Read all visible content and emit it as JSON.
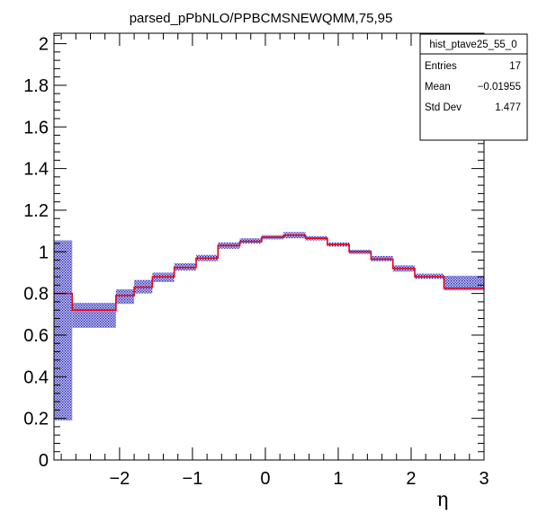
{
  "chart_data": {
    "type": "histogram",
    "title": "parsed_pPbNLO/PPBCMSNEWQMM,75,95",
    "xlabel": "η",
    "ylabel": "",
    "xlim": [
      -2.9,
      3.0
    ],
    "ylim": [
      0,
      2.05
    ],
    "x_ticks": [
      -2,
      -1,
      0,
      1,
      2,
      3
    ],
    "x_tick_labels": [
      "−2",
      "−1",
      "0",
      "1",
      "2",
      "3"
    ],
    "y_ticks": [
      0,
      0.2,
      0.4,
      0.6,
      0.8,
      1,
      1.2,
      1.4,
      1.6,
      1.8,
      2
    ],
    "y_tick_labels": [
      "0",
      "0.2",
      "0.4",
      "0.6",
      "0.8",
      "1",
      "1.2",
      "1.4",
      "1.6",
      "1.8",
      "2"
    ],
    "grid": false,
    "series": [
      {
        "style": "step-line",
        "color": "#e8001c",
        "bin_edges": [
          -2.9,
          -2.65,
          -2.05,
          -1.8,
          -1.55,
          -1.25,
          -0.95,
          -0.65,
          -0.35,
          -0.05,
          0.25,
          0.55,
          0.85,
          1.15,
          1.45,
          1.75,
          2.05,
          2.45,
          3.0
        ],
        "values": [
          0.8,
          0.72,
          0.79,
          0.83,
          0.88,
          0.925,
          0.97,
          1.03,
          1.05,
          1.07,
          1.08,
          1.065,
          1.035,
          1.0,
          0.965,
          0.92,
          0.88,
          0.825
        ]
      },
      {
        "style": "error-band",
        "color": "#1b1bb4",
        "bin_edges": [
          -2.9,
          -2.65,
          -2.05,
          -1.8,
          -1.55,
          -1.25,
          -0.95,
          -0.65,
          -0.35,
          -0.05,
          0.25,
          0.55,
          0.85,
          1.15,
          1.45,
          1.75,
          2.05,
          2.45,
          3.0
        ],
        "low": [
          0.19,
          0.635,
          0.75,
          0.8,
          0.855,
          0.91,
          0.955,
          1.015,
          1.04,
          1.06,
          1.065,
          1.055,
          1.025,
          0.99,
          0.955,
          0.905,
          0.87,
          0.815
        ],
        "high": [
          1.055,
          0.755,
          0.82,
          0.865,
          0.9,
          0.945,
          0.985,
          1.045,
          1.065,
          1.08,
          1.095,
          1.075,
          1.045,
          1.01,
          0.98,
          0.935,
          0.895,
          0.885
        ]
      }
    ],
    "stats_box": {
      "name": "hist_ptave25_55_0",
      "rows": [
        {
          "label": "Entries",
          "value": "17"
        },
        {
          "label": "Mean",
          "value": "−0.01955"
        },
        {
          "label": "Std Dev",
          "value": "1.477"
        }
      ],
      "placement": "top-right"
    }
  }
}
